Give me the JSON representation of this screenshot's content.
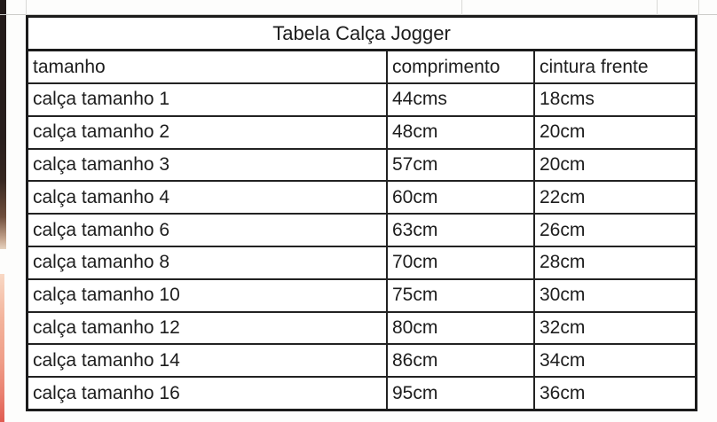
{
  "sheet": {
    "background_color": "#ffffff",
    "gridline_color": "#d9d9d6",
    "border_color": "#1b1b1b",
    "text_color": "#1d1d1d"
  },
  "decorations": {
    "left_strip_top_color": "#281e1c",
    "left_strip_bottom_color": "#ef9d87"
  },
  "table": {
    "title": "Tabela Calça Jogger",
    "columns": [
      "tamanho",
      "comprimento",
      "cintura frente"
    ],
    "rows": [
      [
        "calça tamanho 1",
        "44cms",
        "18cms"
      ],
      [
        "calça tamanho 2",
        "48cm",
        "20cm"
      ],
      [
        "calça tamanho 3",
        "57cm",
        "20cm"
      ],
      [
        "calça tamanho 4",
        "60cm",
        "22cm"
      ],
      [
        "calça tamanho 6",
        "63cm",
        "26cm"
      ],
      [
        "calça tamanho 8",
        "70cm",
        "28cm"
      ],
      [
        "calça tamanho 10",
        "75cm",
        "30cm"
      ],
      [
        "calça tamanho 12",
        "80cm",
        "32cm"
      ],
      [
        "calça tamanho 14",
        "86cm",
        "34cm"
      ],
      [
        "calça tamanho 16",
        "95cm",
        "36cm"
      ]
    ]
  }
}
